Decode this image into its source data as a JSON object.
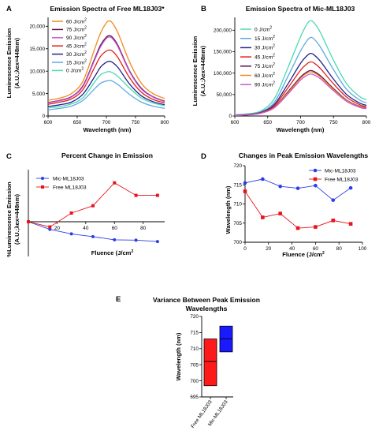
{
  "chart_data": [
    {
      "panel": "A",
      "type": "line",
      "title": "Emission Spectra of Free ML18J03*",
      "xlabel": "Wavelength (nm)",
      "ylabel_line1": "Luminescence Emission",
      "ylabel_line2": "(A.U.;λex=448nm)",
      "xlim": [
        600,
        800
      ],
      "ylim": [
        0,
        22000
      ],
      "xticks": [
        "600",
        "650",
        "700",
        "750",
        "800"
      ],
      "yticks": [
        "0",
        "5,000",
        "10,000",
        "15,000",
        "20,000"
      ],
      "x": [
        600,
        620,
        640,
        660,
        680,
        690,
        700,
        705,
        710,
        720,
        740,
        760,
        780,
        800
      ],
      "series": [
        {
          "name": "60 J/cm²",
          "color": "#f28a1e",
          "values": [
            3500,
            4000,
            5000,
            7800,
            15000,
            18500,
            20800,
            21200,
            20800,
            18500,
            12000,
            7300,
            5000,
            3900
          ]
        },
        {
          "name": "75 J/cm²",
          "color": "#5d0e4c",
          "values": [
            3000,
            3500,
            4300,
            6800,
            12800,
            15800,
            17600,
            17900,
            17600,
            15700,
            10000,
            6200,
            4300,
            3300
          ]
        },
        {
          "name": "90 J/cm²",
          "color": "#c75bd6",
          "values": [
            2900,
            3400,
            4200,
            6600,
            12500,
            15400,
            17300,
            17600,
            17300,
            15400,
            9800,
            6000,
            4200,
            3200
          ]
        },
        {
          "name": "45 J/cm²",
          "color": "#e0201b",
          "values": [
            2600,
            3100,
            3800,
            5900,
            10900,
            13300,
            14500,
            14700,
            14500,
            13000,
            8500,
            5300,
            3700,
            2900
          ]
        },
        {
          "name": "30 J/cm²",
          "color": "#22228c",
          "values": [
            2100,
            2500,
            3100,
            4900,
            8800,
            10900,
            12000,
            12200,
            12000,
            10800,
            7100,
            4500,
            3200,
            2500
          ]
        },
        {
          "name": "15 J/cm²",
          "color": "#5fa8e4",
          "values": [
            1400,
            1700,
            2200,
            3500,
            6100,
            7300,
            7800,
            7900,
            7800,
            7000,
            4800,
            3100,
            2200,
            1700
          ]
        },
        {
          "name": "0 J/cm²",
          "color": "#4bd9b2",
          "values": [
            1800,
            2100,
            2700,
            4100,
            7600,
            9200,
            9800,
            9900,
            9700,
            8800,
            6200,
            4000,
            2900,
            2300
          ]
        }
      ]
    },
    {
      "panel": "B",
      "type": "line",
      "title": "Emission Spectra of Mic-ML18J03",
      "xlabel": "Wavelength (nm)",
      "ylabel_line1": "Luminescence Emission",
      "ylabel_line2": "(A.U.;λex=448nm)",
      "xlim": [
        600,
        800
      ],
      "ylim": [
        0,
        230000
      ],
      "xticks": [
        "600",
        "650",
        "700",
        "750",
        "800"
      ],
      "yticks": [
        "0",
        "50,000",
        "100,000",
        "150,000",
        "200,000"
      ],
      "x": [
        600,
        620,
        640,
        660,
        680,
        700,
        710,
        715,
        720,
        730,
        750,
        770,
        790,
        800
      ],
      "series": [
        {
          "name": "0 J/cm²",
          "color": "#4bd9b2",
          "values": [
            3000,
            5000,
            12000,
            40000,
            110000,
            185000,
            215000,
            222000,
            218000,
            195000,
            130000,
            75000,
            45000,
            38000
          ]
        },
        {
          "name": "15 J/cm²",
          "color": "#5fa8e4",
          "values": [
            2000,
            4000,
            10000,
            32000,
            90000,
            152000,
            176000,
            183000,
            180000,
            161000,
            108000,
            62000,
            37000,
            31000
          ]
        },
        {
          "name": "30 J/cm²",
          "color": "#22228c",
          "values": [
            1800,
            3500,
            8500,
            27000,
            73000,
            123000,
            141000,
            146000,
            143000,
            128000,
            86000,
            50000,
            30000,
            25000
          ]
        },
        {
          "name": "45 J/cm²",
          "color": "#e0201b",
          "values": [
            1600,
            3000,
            7500,
            24000,
            64000,
            107000,
            122000,
            126000,
            124000,
            111000,
            75000,
            44000,
            26000,
            22000
          ]
        },
        {
          "name": "75 J/cm²",
          "color": "#5d0e4c",
          "values": [
            1500,
            2800,
            7000,
            21000,
            55000,
            91000,
            103000,
            106000,
            104000,
            94000,
            64000,
            37000,
            22000,
            19000
          ]
        },
        {
          "name": "60 J/cm²",
          "color": "#f28a1e",
          "values": [
            1400,
            2700,
            6800,
            20000,
            53000,
            88000,
            100000,
            103000,
            101000,
            91000,
            62000,
            36000,
            21000,
            18000
          ]
        },
        {
          "name": "90 J/cm²",
          "color": "#c75bd6",
          "values": [
            1300,
            2500,
            6400,
            19000,
            50000,
            84000,
            95000,
            98000,
            96000,
            87000,
            59000,
            34000,
            20000,
            17000
          ]
        }
      ]
    },
    {
      "panel": "C",
      "type": "line",
      "title": "Percent Change in Emission",
      "xlabel": "Fluence (J/cm²)",
      "ylabel_line1": "%Luminescence Emission",
      "ylabel_line2": "(A.U.;λex=448nm)",
      "xlim": [
        0,
        95
      ],
      "ylim": [
        -100,
        150
      ],
      "xticks": [
        "20",
        "40",
        "60",
        "80"
      ],
      "series": [
        {
          "name": "Mic-ML18J03",
          "color": "#2b3de8",
          "marker": "circle",
          "x": [
            0,
            15,
            30,
            45,
            60,
            75,
            90
          ],
          "values": [
            0,
            -22,
            -35,
            -43,
            -52,
            -53,
            -57
          ]
        },
        {
          "name": "Free ML18J03",
          "color": "#e8141b",
          "marker": "square",
          "x": [
            0,
            15,
            30,
            45,
            60,
            75,
            90
          ],
          "values": [
            0,
            -15,
            25,
            46,
            112,
            76,
            76
          ]
        }
      ]
    },
    {
      "panel": "D",
      "type": "line",
      "title": "Changes in Peak Emission Wavelengths",
      "xlabel": "Fluence (J/cm²)",
      "ylabel": "Wavelength (nm)",
      "xlim": [
        0,
        100
      ],
      "ylim": [
        700,
        720
      ],
      "xticks": [
        "0",
        "20",
        "40",
        "60",
        "80",
        "100"
      ],
      "yticks": [
        "700",
        "705",
        "710",
        "715",
        "720"
      ],
      "series": [
        {
          "name": "Mic-ML18J03",
          "color": "#2b3de8",
          "marker": "circle",
          "x": [
            0,
            15,
            30,
            45,
            60,
            75,
            90
          ],
          "values": [
            715.5,
            716.5,
            714.6,
            714.1,
            714.8,
            711.0,
            714.2
          ]
        },
        {
          "name": "Free ML18J03",
          "color": "#e8141b",
          "marker": "square",
          "x": [
            0,
            15,
            30,
            45,
            60,
            75,
            90
          ],
          "values": [
            713.3,
            706.5,
            707.5,
            703.7,
            704.0,
            705.7,
            704.8
          ]
        }
      ]
    },
    {
      "panel": "E",
      "type": "bar",
      "title_line1": "Variance Between Peak Emission",
      "title_line2": "Wavelengths",
      "ylabel": "Wavelength (nm)",
      "ylim": [
        695,
        720
      ],
      "yticks": [
        "695",
        "700",
        "705",
        "710",
        "715",
        "720"
      ],
      "categories": [
        "Free ML18J03",
        "Mic-ML18J03"
      ],
      "colors": [
        "#ff1a1a",
        "#1a1aff"
      ],
      "ranges": [
        [
          698.5,
          713.0
        ],
        [
          709.0,
          717.0
        ]
      ],
      "centers": [
        706.0,
        713.0
      ]
    }
  ]
}
